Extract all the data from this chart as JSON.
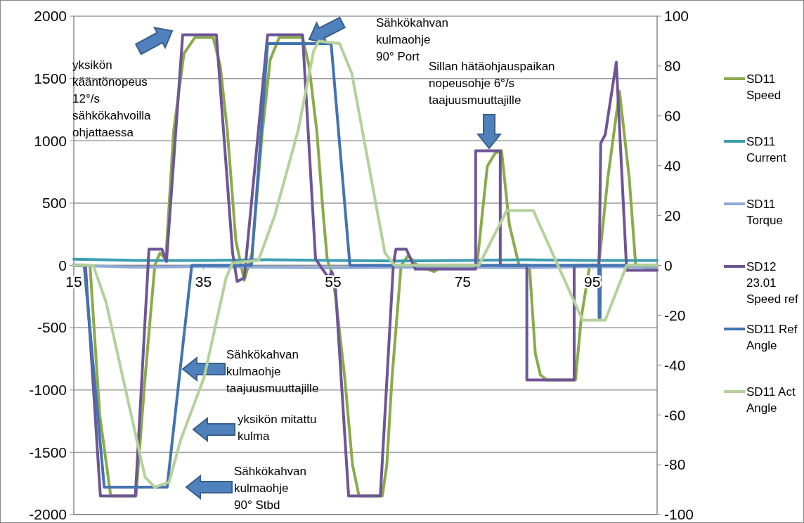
{
  "chart_data": {
    "type": "line",
    "xlim": [
      15,
      105
    ],
    "xticks": [
      15,
      35,
      55,
      75,
      95
    ],
    "ylim": [
      -2000,
      2000
    ],
    "yticks": [
      -2000,
      -1500,
      -1000,
      -500,
      0,
      500,
      1000,
      1500,
      2000
    ],
    "y2lim": [
      -100,
      100
    ],
    "y2ticks": [
      -100,
      -80,
      -60,
      -40,
      -20,
      0,
      20,
      40,
      60,
      80,
      100
    ],
    "grid": "y",
    "legend": "right",
    "series": [
      {
        "name": "SD11 Speed",
        "color": "#8aab4a",
        "x": [
          15,
          17.5,
          19,
          20.7,
          24.6,
          26,
          27.5,
          28.3,
          29.2,
          30.4,
          32,
          33.7,
          36.5,
          37.6,
          38.7,
          40,
          41.3,
          42.5,
          44.1,
          45.3,
          46.7,
          50.3,
          51.3,
          52.5,
          53.5,
          54.1,
          55,
          55.5,
          56.8,
          58,
          59,
          62.6,
          63.3,
          64.1,
          65.5,
          66.6,
          68,
          70.6,
          72,
          77.2,
          78,
          78.8,
          80,
          81,
          82.2,
          83.7,
          85.3,
          86.2,
          87,
          88,
          92.4,
          93.3,
          94.6,
          96,
          97.4,
          99.2,
          100.7,
          101.7,
          105
        ],
        "values": [
          0,
          0,
          -1200,
          -1850,
          -1850,
          -900,
          0,
          100,
          50,
          1075,
          1700,
          1830,
          1830,
          1600,
          1075,
          200,
          -120,
          100,
          1075,
          1650,
          1830,
          1830,
          1600,
          1075,
          400,
          50,
          -100,
          -300,
          -900,
          -1600,
          -1850,
          -1850,
          -1600,
          -900,
          0,
          80,
          0,
          -50,
          0,
          0,
          400,
          795,
          900,
          920,
          327,
          0,
          0,
          -705,
          -880,
          -920,
          -920,
          -420,
          0,
          0,
          704,
          1397,
          700,
          0,
          -40
        ]
      },
      {
        "name": "SD11 Current",
        "color": "#3d9db0",
        "x": [
          15,
          25,
          35,
          45,
          55,
          65,
          75,
          85,
          95,
          105
        ],
        "values": [
          50,
          40,
          40,
          45,
          40,
          35,
          40,
          45,
          40,
          40
        ]
      },
      {
        "name": "SD11 Torque",
        "color": "#8eaad6",
        "x": [
          15,
          25,
          35,
          45,
          55,
          65,
          75,
          85,
          95,
          105
        ],
        "values": [
          0,
          -15,
          -10,
          -15,
          -20,
          -15,
          -15,
          -20,
          -10,
          -15
        ]
      },
      {
        "name": "SD12 23.01 Speed ref",
        "color": "#6f5596",
        "x": [
          15,
          16.8,
          19.1,
          24.5,
          26.6,
          28.6,
          29.3,
          31.8,
          37,
          39.5,
          40.2,
          41.3,
          44.9,
          50.3,
          52.3,
          54.3,
          54.8,
          55.3,
          57.4,
          62.3,
          64.3,
          64.7,
          66.3,
          67.7,
          77,
          77,
          80.8,
          80.8,
          84.9,
          84.9,
          92.2,
          92.2,
          96,
          96.1,
          96.3,
          97,
          98.7,
          100.3,
          105
        ],
        "values": [
          0,
          0,
          -1850,
          -1850,
          130,
          130,
          30,
          1850,
          1850,
          100,
          -130,
          -100,
          1850,
          1850,
          50,
          -100,
          -50,
          -120,
          -1850,
          -1850,
          0,
          130,
          130,
          -30,
          -30,
          920,
          920,
          0,
          0,
          -920,
          -920,
          0,
          0,
          150,
          980,
          1050,
          1630,
          -40,
          -40
        ]
      },
      {
        "name": "SD11 Ref Angle",
        "color": "#4373b0",
        "axis": "y2",
        "x": [
          15,
          16.6,
          19.7,
          29.4,
          33.2,
          42.4,
          44.9,
          54.7,
          57.6,
          96,
          96.05,
          96.2,
          96.25,
          105
        ],
        "values": [
          0,
          0,
          -89,
          -89,
          0,
          0,
          89,
          89,
          0,
          0,
          -21,
          -21,
          0,
          0
        ]
      },
      {
        "name": "SD11 Act Angle",
        "color": "#b4d19a",
        "axis": "y2",
        "x": [
          15,
          18,
          20,
          26,
          27.5,
          29.7,
          31.5,
          35.1,
          38.5,
          39.5,
          43.5,
          46,
          49.6,
          52,
          52.8,
          56,
          57.9,
          63,
          64.5,
          77.5,
          81.8,
          85.9,
          93.5,
          97,
          100.3,
          105
        ],
        "values": [
          0,
          0,
          -15,
          -85,
          -89,
          -87,
          -70,
          -45,
          -5,
          1,
          2,
          20,
          54,
          86,
          90,
          89,
          77,
          5,
          0,
          0,
          22,
          22,
          -22,
          -22,
          0,
          0
        ]
      }
    ],
    "annotations": [
      "yksikön kääntönopeus 12°/s sähkökahvoilla ohjattaessa",
      "Sähkökahvan kulmaohje 90° Port",
      "Sillan hätäohjauspaikan nopeusohje 6°/s taajuusmuuttajille",
      "Sähkökahvan kulmaohje taajuusmuuttajille",
      "yksikön mitattu kulma",
      "Sähkökahvan kulmaohje 90° Stbd"
    ]
  }
}
